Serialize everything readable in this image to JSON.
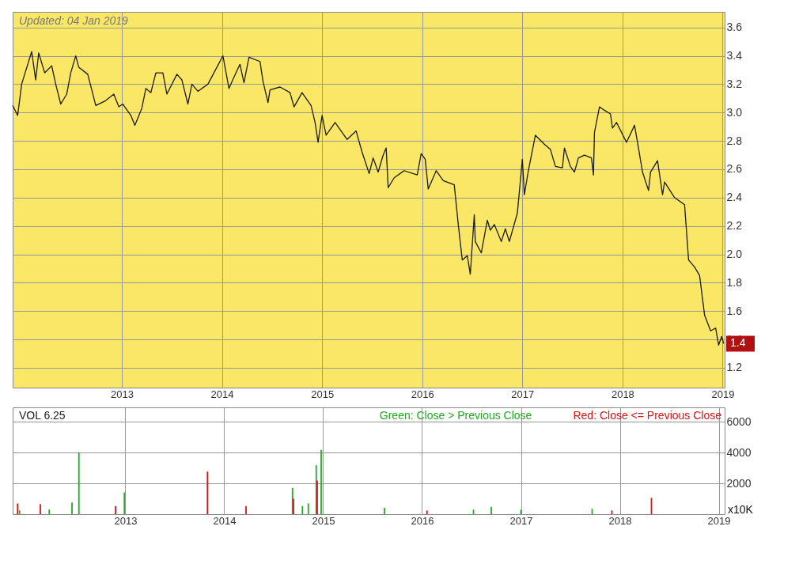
{
  "chart_data": [
    {
      "type": "line",
      "color": "#1a1a1a",
      "grid": true,
      "marker": "none",
      "line_style": "solid",
      "annotations": [
        "Updated: 04 Jan 2019",
        "1.4"
      ],
      "xlim": [
        2011.91,
        2019.02
      ],
      "xticks": [
        2013,
        2014,
        2015,
        2016,
        2017,
        2018,
        2019
      ],
      "ylim": [
        1.06,
        3.71
      ],
      "yticks": [
        1.2,
        1.4,
        1.6,
        1.8,
        {
          "value": 2,
          "label": "2.0"
        },
        2.2,
        2.4,
        2.6,
        2.8,
        {
          "value": 3,
          "label": "3.0"
        },
        3.2,
        3.4,
        3.6
      ],
      "x": [
        2011.91,
        2011.96,
        2012.0,
        2012.03,
        2012.1,
        2012.14,
        2012.17,
        2012.23,
        2012.3,
        2012.34,
        2012.39,
        2012.45,
        2012.49,
        2012.54,
        2012.57,
        2012.66,
        2012.74,
        2012.83,
        2012.92,
        2012.97,
        2013.01,
        2013.09,
        2013.13,
        2013.2,
        2013.24,
        2013.29,
        2013.34,
        2013.41,
        2013.45,
        2013.55,
        2013.6,
        2013.66,
        2013.7,
        2013.76,
        2013.86,
        2013.95,
        2014.01,
        2014.07,
        2014.14,
        2014.18,
        2014.22,
        2014.27,
        2014.38,
        2014.41,
        2014.46,
        2014.48,
        2014.58,
        2014.68,
        2014.72,
        2014.8,
        2014.89,
        2014.93,
        2014.96,
        2015.0,
        2015.04,
        2015.13,
        2015.25,
        2015.34,
        2015.4,
        2015.47,
        2015.51,
        2015.56,
        2015.61,
        2015.64,
        2015.66,
        2015.72,
        2015.82,
        2015.95,
        2015.99,
        2016.03,
        2016.06,
        2016.14,
        2016.21,
        2016.32,
        2016.36,
        2016.4,
        2016.45,
        2016.48,
        2016.52,
        2016.53,
        2016.59,
        2016.65,
        2016.68,
        2016.72,
        2016.79,
        2016.83,
        2016.87,
        2016.95,
        2017.0,
        2017.02,
        2017.06,
        2017.13,
        2017.23,
        2017.28,
        2017.33,
        2017.4,
        2017.42,
        2017.48,
        2017.52,
        2017.56,
        2017.62,
        2017.69,
        2017.71,
        2017.72,
        2017.77,
        2017.81,
        2017.88,
        2017.9,
        2017.94,
        2018.04,
        2018.12,
        2018.15,
        2018.2,
        2018.26,
        2018.28,
        2018.35,
        2018.4,
        2018.42,
        2018.52,
        2018.62,
        2018.66,
        2018.72,
        2018.77,
        2018.82,
        2018.88,
        2018.93,
        2018.96,
        2018.99,
        2019.01
      ],
      "values": [
        3.05,
        2.98,
        3.2,
        3.27,
        3.43,
        3.23,
        3.42,
        3.28,
        3.33,
        3.2,
        3.06,
        3.13,
        3.28,
        3.4,
        3.32,
        3.27,
        3.05,
        3.08,
        3.13,
        3.04,
        3.06,
        2.98,
        2.91,
        3.03,
        3.17,
        3.14,
        3.28,
        3.28,
        3.13,
        3.27,
        3.23,
        3.06,
        3.2,
        3.15,
        3.2,
        3.32,
        3.4,
        3.17,
        3.28,
        3.34,
        3.21,
        3.39,
        3.36,
        3.22,
        3.07,
        3.16,
        3.18,
        3.14,
        3.04,
        3.14,
        3.05,
        2.93,
        2.79,
        2.98,
        2.84,
        2.93,
        2.81,
        2.87,
        2.72,
        2.57,
        2.68,
        2.58,
        2.7,
        2.75,
        2.47,
        2.54,
        2.59,
        2.56,
        2.71,
        2.67,
        2.46,
        2.59,
        2.52,
        2.49,
        2.21,
        1.96,
        1.99,
        1.86,
        2.28,
        2.09,
        2.01,
        2.24,
        2.17,
        2.21,
        2.09,
        2.18,
        2.09,
        2.29,
        2.67,
        2.42,
        2.59,
        2.84,
        2.77,
        2.74,
        2.62,
        2.61,
        2.75,
        2.62,
        2.58,
        2.68,
        2.7,
        2.68,
        2.56,
        2.86,
        3.04,
        3.02,
        2.99,
        2.89,
        2.93,
        2.79,
        2.91,
        2.79,
        2.58,
        2.45,
        2.58,
        2.66,
        2.42,
        2.51,
        2.4,
        2.35,
        1.96,
        1.91,
        1.85,
        1.57,
        1.46,
        1.48,
        1.36,
        1.42,
        1.37
      ]
    },
    {
      "type": "bar",
      "grid": true,
      "legend": "top right",
      "annotations": [
        "VOL  6.25",
        "x10K"
      ],
      "xlim": [
        2011.9,
        2019.02
      ],
      "xticks": [
        2013,
        2014,
        2015,
        2016,
        2017,
        2018,
        2019
      ],
      "ylim": [
        0,
        6940
      ],
      "yticks": [
        2000,
        4000,
        6000
      ],
      "series": [
        {
          "name": "Green: Close > Previous Close",
          "color": "#22aa22",
          "x": [
            2011.93,
            2012.23,
            2012.46,
            2012.53,
            2012.99,
            2014.69,
            2014.79,
            2014.85,
            2014.93,
            2014.98,
            2015.62,
            2016.52,
            2016.7,
            2017.0,
            2017.72
          ],
          "values": [
            240,
            300,
            760,
            4000,
            1410,
            1710,
            530,
            700,
            3180,
            4180,
            410,
            290,
            470,
            290,
            350
          ]
        },
        {
          "name": "Red: Close <= Previous Close",
          "color": "#dd1111",
          "x": [
            2011.91,
            2012.14,
            2012.9,
            2013.83,
            2014.22,
            2014.7,
            2014.94,
            2016.05,
            2017.92,
            2018.32
          ],
          "values": [
            700,
            650,
            530,
            2760,
            530,
            1000,
            2180,
            240,
            240,
            1060
          ]
        }
      ]
    }
  ]
}
